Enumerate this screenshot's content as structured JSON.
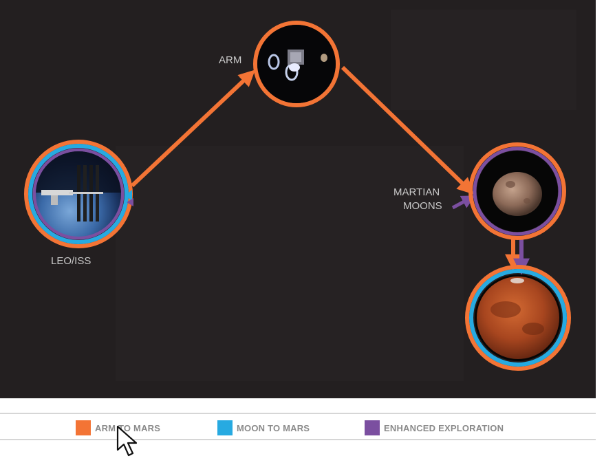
{
  "diagram": {
    "nodes": [
      {
        "id": "leo",
        "label": "LEO/ISS",
        "image": "space-station-earth"
      },
      {
        "id": "arm",
        "label": "ARM",
        "image": "asteroid-redirect-spacecraft"
      },
      {
        "id": "moons",
        "label_lines": [
          "MARTIAN",
          "MOONS"
        ],
        "image": "phobos-moon"
      },
      {
        "id": "mars",
        "label": "",
        "image": "mars-planet"
      }
    ],
    "paths": [
      {
        "from": "leo",
        "to": "arm",
        "route": "arm-to-mars"
      },
      {
        "from": "arm",
        "to": "moons",
        "route": "arm-to-mars"
      },
      {
        "from": "moons",
        "to": "mars",
        "route": "arm-to-mars"
      },
      {
        "from": "leo",
        "to": "moons",
        "route": "enhanced-exploration"
      },
      {
        "from": "moons",
        "to": "mars",
        "route": "enhanced-exploration"
      }
    ]
  },
  "colors": {
    "arm_to_mars": "#f37435",
    "moon_to_mars": "#27aae1",
    "enhanced_exploration": "#7b4fa0",
    "background": "#231f20"
  },
  "legend": {
    "items": [
      {
        "label": "ARM TO MARS",
        "color": "#f37435"
      },
      {
        "label": "MOON TO MARS",
        "color": "#27aae1"
      },
      {
        "label": "ENHANCED EXPLORATION",
        "color": "#7b4fa0"
      }
    ]
  },
  "cursor": {
    "icon": "pointer-arrow-icon"
  }
}
